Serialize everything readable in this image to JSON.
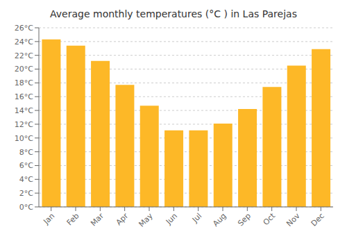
{
  "chart_data": {
    "type": "bar",
    "title": "Average monthly temperatures (°C ) in Las Parejas",
    "categories": [
      "Jan",
      "Feb",
      "Mar",
      "Apr",
      "May",
      "Jun",
      "Jul",
      "Aug",
      "Sep",
      "Oct",
      "Nov",
      "Dec"
    ],
    "values": [
      24.3,
      23.4,
      21.2,
      17.7,
      14.7,
      11.1,
      11.1,
      12.1,
      14.2,
      17.4,
      20.5,
      22.9
    ],
    "color": "#FDB827",
    "ylim": [
      0,
      26
    ],
    "yticks": [
      {
        "value": 0,
        "label": "0°C"
      },
      {
        "value": 2,
        "label": "2°C"
      },
      {
        "value": 4,
        "label": "4°C"
      },
      {
        "value": 6,
        "label": "6°C"
      },
      {
        "value": 8,
        "label": "8°C"
      },
      {
        "value": 10,
        "label": "10°C"
      },
      {
        "value": 12,
        "label": "12°C"
      },
      {
        "value": 14,
        "label": "14°C"
      },
      {
        "value": 16,
        "label": "16°C"
      },
      {
        "value": 18,
        "label": "18°C"
      },
      {
        "value": 20,
        "label": "20°C"
      },
      {
        "value": 22,
        "label": "22°C"
      },
      {
        "value": 24,
        "label": "24°C"
      },
      {
        "value": 26,
        "label": "26°C"
      }
    ],
    "grid": true
  }
}
